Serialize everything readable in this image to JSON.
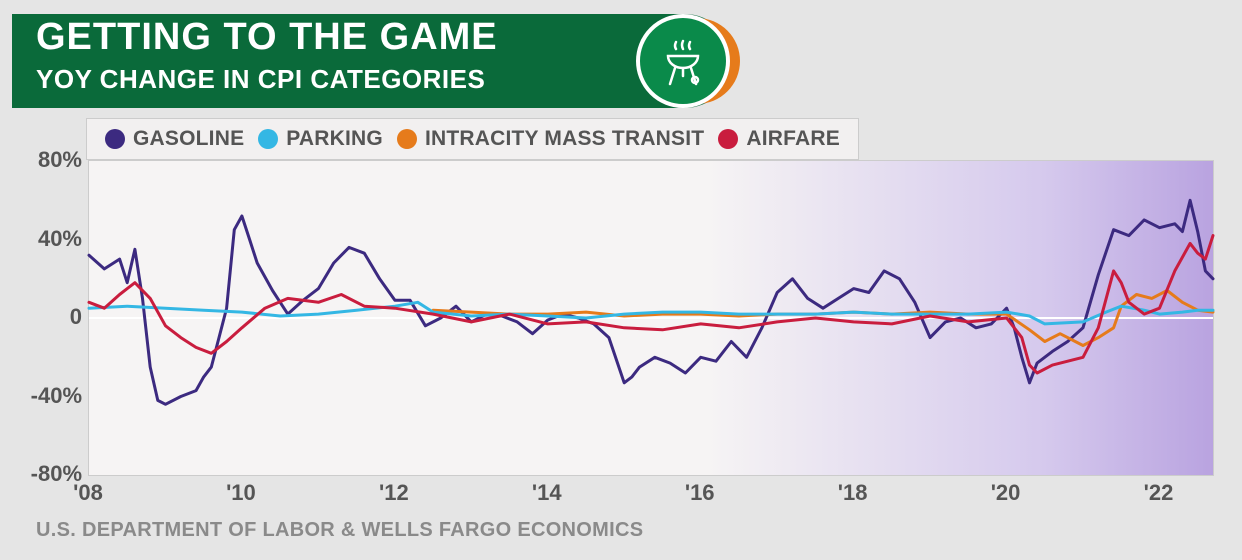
{
  "header": {
    "title": "GETTING TO THE GAME",
    "subtitle": "YOY CHANGE IN CPI CATEGORIES",
    "bg_color": "#0a6a3a",
    "title_color": "#ffffff",
    "title_fontsize": 38,
    "subtitle_fontsize": 26,
    "icon_name": "bbq-grill-icon",
    "icon_ring_color": "#ffffff",
    "icon_bg_green": "#0a8a4a",
    "icon_bg_orange": "#e67b1b"
  },
  "source": {
    "text": "U.S. DEPARTMENT OF LABOR & WELLS FARGO ECONOMICS",
    "color": "#8a8a8a",
    "fontsize": 20
  },
  "chart": {
    "type": "line",
    "background_gradient": [
      "#f6f4f4",
      "#d5c9ed",
      "#b9a3e0"
    ],
    "page_bg": "#e5e5e5",
    "plot_border": "#cccccc",
    "y": {
      "min": -80,
      "max": 80,
      "ticks": [
        -80,
        -40,
        0,
        40,
        80
      ],
      "labels": [
        "-80%",
        "-40%",
        "0",
        "40%",
        "80%"
      ],
      "tick_color": "#555555",
      "tick_fontsize": 22,
      "zero_line_color": "#ffffff"
    },
    "x": {
      "min": 2008,
      "max": 2022.7,
      "ticks": [
        2008,
        2010,
        2012,
        2014,
        2016,
        2018,
        2020,
        2022
      ],
      "labels": [
        "'08",
        "'10",
        "'12",
        "'14",
        "'16",
        "'18",
        "'20",
        "'22"
      ],
      "tick_color": "#555555",
      "tick_fontsize": 22
    },
    "legend": {
      "bg": "#f2f0f0",
      "border": "#cccccc",
      "label_color": "#555555",
      "label_fontsize": 21,
      "position": "top-left-inside"
    },
    "series": [
      {
        "id": "gasoline",
        "label": "GASOLINE",
        "color": "#3c2a80",
        "line_width": 3,
        "data": [
          [
            2008.0,
            32
          ],
          [
            2008.2,
            25
          ],
          [
            2008.4,
            30
          ],
          [
            2008.5,
            18
          ],
          [
            2008.6,
            35
          ],
          [
            2008.7,
            10
          ],
          [
            2008.8,
            -25
          ],
          [
            2008.9,
            -42
          ],
          [
            2009.0,
            -44
          ],
          [
            2009.2,
            -40
          ],
          [
            2009.4,
            -37
          ],
          [
            2009.5,
            -30
          ],
          [
            2009.6,
            -25
          ],
          [
            2009.7,
            -10
          ],
          [
            2009.8,
            5
          ],
          [
            2009.9,
            45
          ],
          [
            2010.0,
            52
          ],
          [
            2010.1,
            40
          ],
          [
            2010.2,
            28
          ],
          [
            2010.4,
            14
          ],
          [
            2010.6,
            2
          ],
          [
            2010.8,
            9
          ],
          [
            2011.0,
            15
          ],
          [
            2011.2,
            28
          ],
          [
            2011.4,
            36
          ],
          [
            2011.6,
            33
          ],
          [
            2011.8,
            20
          ],
          [
            2012.0,
            9
          ],
          [
            2012.2,
            9
          ],
          [
            2012.4,
            -4
          ],
          [
            2012.6,
            0
          ],
          [
            2012.8,
            6
          ],
          [
            2013.0,
            -2
          ],
          [
            2013.2,
            2
          ],
          [
            2013.4,
            1
          ],
          [
            2013.6,
            -2
          ],
          [
            2013.8,
            -8
          ],
          [
            2014.0,
            -1
          ],
          [
            2014.2,
            2
          ],
          [
            2014.4,
            0
          ],
          [
            2014.6,
            -3
          ],
          [
            2014.8,
            -10
          ],
          [
            2015.0,
            -33
          ],
          [
            2015.1,
            -30
          ],
          [
            2015.2,
            -25
          ],
          [
            2015.4,
            -20
          ],
          [
            2015.6,
            -23
          ],
          [
            2015.8,
            -28
          ],
          [
            2016.0,
            -20
          ],
          [
            2016.2,
            -22
          ],
          [
            2016.4,
            -12
          ],
          [
            2016.6,
            -20
          ],
          [
            2016.8,
            -5
          ],
          [
            2017.0,
            13
          ],
          [
            2017.2,
            20
          ],
          [
            2017.4,
            10
          ],
          [
            2017.6,
            5
          ],
          [
            2017.8,
            10
          ],
          [
            2018.0,
            15
          ],
          [
            2018.2,
            13
          ],
          [
            2018.4,
            24
          ],
          [
            2018.6,
            20
          ],
          [
            2018.8,
            8
          ],
          [
            2019.0,
            -10
          ],
          [
            2019.2,
            -2
          ],
          [
            2019.4,
            0
          ],
          [
            2019.6,
            -5
          ],
          [
            2019.8,
            -3
          ],
          [
            2020.0,
            5
          ],
          [
            2020.1,
            -5
          ],
          [
            2020.2,
            -20
          ],
          [
            2020.3,
            -33
          ],
          [
            2020.4,
            -23
          ],
          [
            2020.6,
            -17
          ],
          [
            2020.8,
            -12
          ],
          [
            2021.0,
            -5
          ],
          [
            2021.2,
            22
          ],
          [
            2021.4,
            45
          ],
          [
            2021.6,
            42
          ],
          [
            2021.8,
            50
          ],
          [
            2022.0,
            46
          ],
          [
            2022.2,
            48
          ],
          [
            2022.3,
            44
          ],
          [
            2022.4,
            60
          ],
          [
            2022.5,
            44
          ],
          [
            2022.6,
            24
          ],
          [
            2022.7,
            20
          ]
        ]
      },
      {
        "id": "parking",
        "label": "PARKING",
        "color": "#34b7e4",
        "line_width": 3,
        "data": [
          [
            2008.0,
            5
          ],
          [
            2008.5,
            6
          ],
          [
            2009.0,
            5
          ],
          [
            2009.5,
            4
          ],
          [
            2010.0,
            3
          ],
          [
            2010.5,
            1
          ],
          [
            2011.0,
            2
          ],
          [
            2011.5,
            4
          ],
          [
            2012.0,
            6
          ],
          [
            2012.3,
            8
          ],
          [
            2012.5,
            3
          ],
          [
            2013.0,
            1
          ],
          [
            2013.5,
            2
          ],
          [
            2014.0,
            1
          ],
          [
            2014.5,
            0
          ],
          [
            2015.0,
            2
          ],
          [
            2015.5,
            3
          ],
          [
            2016.0,
            3
          ],
          [
            2016.5,
            2
          ],
          [
            2017.0,
            2
          ],
          [
            2017.5,
            2
          ],
          [
            2018.0,
            3
          ],
          [
            2018.5,
            2
          ],
          [
            2019.0,
            2
          ],
          [
            2019.5,
            2
          ],
          [
            2020.0,
            3
          ],
          [
            2020.3,
            1
          ],
          [
            2020.5,
            -3
          ],
          [
            2021.0,
            -2
          ],
          [
            2021.3,
            3
          ],
          [
            2021.5,
            6
          ],
          [
            2021.8,
            4
          ],
          [
            2022.0,
            2
          ],
          [
            2022.3,
            3
          ],
          [
            2022.5,
            4
          ],
          [
            2022.7,
            4
          ]
        ]
      },
      {
        "id": "transit",
        "label": "INTRACITY MASS TRANSIT",
        "color": "#e67b1b",
        "line_width": 3,
        "data": [
          [
            2012.5,
            4
          ],
          [
            2013.0,
            3
          ],
          [
            2013.5,
            2
          ],
          [
            2014.0,
            2
          ],
          [
            2014.5,
            3
          ],
          [
            2015.0,
            1
          ],
          [
            2015.5,
            2
          ],
          [
            2016.0,
            2
          ],
          [
            2016.5,
            1
          ],
          [
            2017.0,
            2
          ],
          [
            2017.5,
            2
          ],
          [
            2018.0,
            3
          ],
          [
            2018.5,
            2
          ],
          [
            2019.0,
            3
          ],
          [
            2019.5,
            2
          ],
          [
            2020.0,
            2
          ],
          [
            2020.3,
            -6
          ],
          [
            2020.5,
            -12
          ],
          [
            2020.7,
            -8
          ],
          [
            2021.0,
            -14
          ],
          [
            2021.2,
            -10
          ],
          [
            2021.4,
            -5
          ],
          [
            2021.5,
            6
          ],
          [
            2021.7,
            12
          ],
          [
            2021.9,
            10
          ],
          [
            2022.1,
            14
          ],
          [
            2022.3,
            8
          ],
          [
            2022.5,
            4
          ],
          [
            2022.7,
            3
          ]
        ]
      },
      {
        "id": "airfare",
        "label": "AIRFARE",
        "color": "#c91d3e",
        "line_width": 3,
        "data": [
          [
            2008.0,
            8
          ],
          [
            2008.2,
            5
          ],
          [
            2008.4,
            12
          ],
          [
            2008.6,
            18
          ],
          [
            2008.8,
            10
          ],
          [
            2009.0,
            -4
          ],
          [
            2009.2,
            -10
          ],
          [
            2009.4,
            -15
          ],
          [
            2009.6,
            -18
          ],
          [
            2009.8,
            -12
          ],
          [
            2010.0,
            -5
          ],
          [
            2010.3,
            5
          ],
          [
            2010.6,
            10
          ],
          [
            2011.0,
            8
          ],
          [
            2011.3,
            12
          ],
          [
            2011.6,
            6
          ],
          [
            2012.0,
            5
          ],
          [
            2012.5,
            2
          ],
          [
            2013.0,
            -2
          ],
          [
            2013.5,
            2
          ],
          [
            2014.0,
            -3
          ],
          [
            2014.5,
            -2
          ],
          [
            2015.0,
            -5
          ],
          [
            2015.5,
            -6
          ],
          [
            2016.0,
            -3
          ],
          [
            2016.5,
            -5
          ],
          [
            2017.0,
            -2
          ],
          [
            2017.5,
            0
          ],
          [
            2018.0,
            -2
          ],
          [
            2018.5,
            -3
          ],
          [
            2019.0,
            1
          ],
          [
            2019.5,
            -2
          ],
          [
            2020.0,
            0
          ],
          [
            2020.2,
            -10
          ],
          [
            2020.3,
            -24
          ],
          [
            2020.4,
            -28
          ],
          [
            2020.6,
            -24
          ],
          [
            2020.8,
            -22
          ],
          [
            2021.0,
            -20
          ],
          [
            2021.2,
            -5
          ],
          [
            2021.4,
            24
          ],
          [
            2021.5,
            18
          ],
          [
            2021.6,
            8
          ],
          [
            2021.8,
            2
          ],
          [
            2022.0,
            5
          ],
          [
            2022.2,
            24
          ],
          [
            2022.4,
            38
          ],
          [
            2022.5,
            33
          ],
          [
            2022.6,
            30
          ],
          [
            2022.7,
            42
          ]
        ]
      }
    ]
  }
}
